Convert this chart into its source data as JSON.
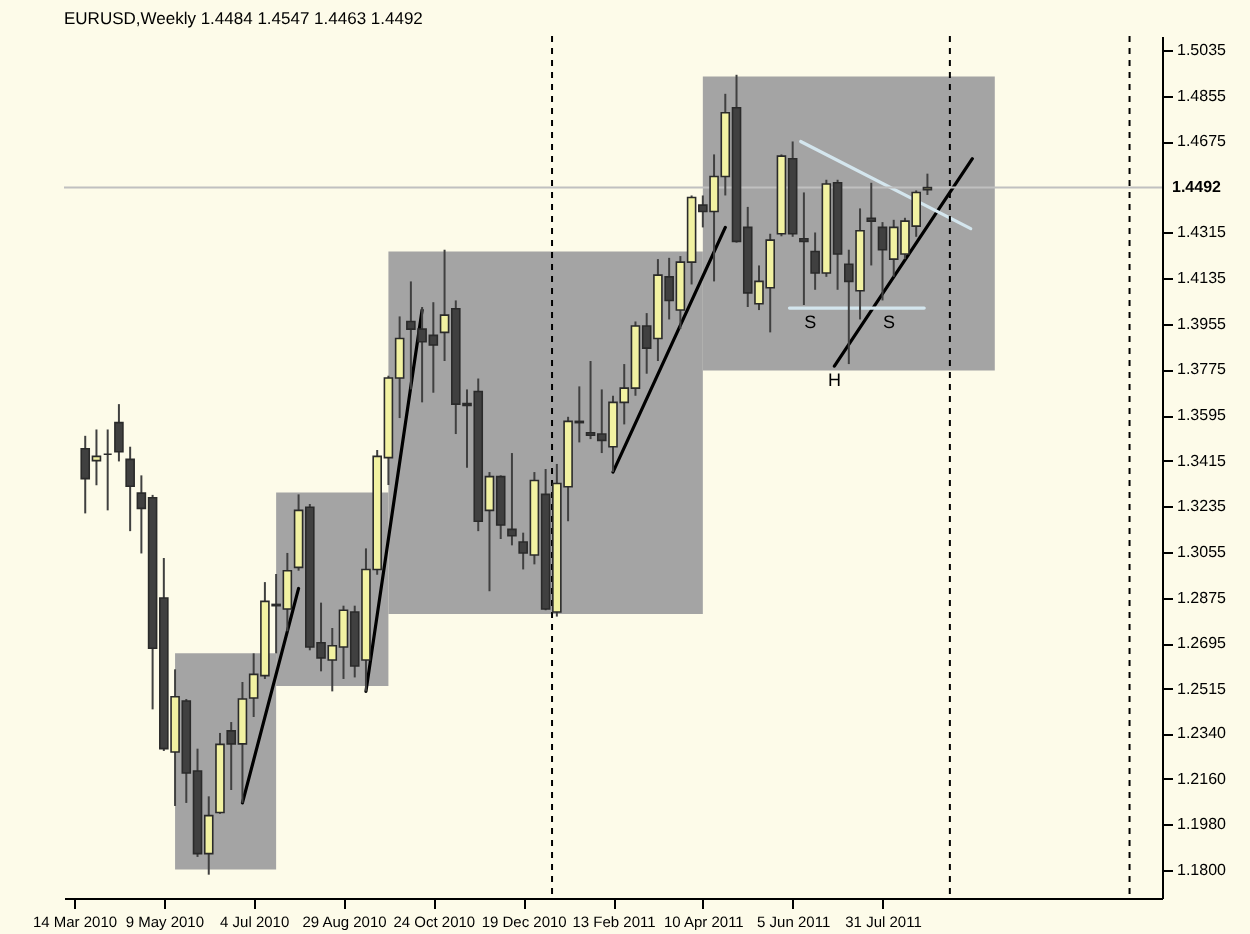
{
  "chart_data": {
    "type": "candlestick",
    "title": "EURUSD,Weekly 1.4484 1.4547 1.4463 1.4492",
    "x": [
      "2010-03-21",
      "2010-03-28",
      "2010-04-04",
      "2010-04-11",
      "2010-04-18",
      "2010-04-25",
      "2010-05-02",
      "2010-05-09",
      "2010-05-16",
      "2010-05-23",
      "2010-05-30",
      "2010-06-06",
      "2010-06-13",
      "2010-06-20",
      "2010-06-27",
      "2010-07-04",
      "2010-07-11",
      "2010-07-18",
      "2010-07-25",
      "2010-08-01",
      "2010-08-08",
      "2010-08-15",
      "2010-08-22",
      "2010-08-29",
      "2010-09-05",
      "2010-09-12",
      "2010-09-19",
      "2010-09-26",
      "2010-10-03",
      "2010-10-10",
      "2010-10-17",
      "2010-10-24",
      "2010-10-31",
      "2010-11-07",
      "2010-11-14",
      "2010-11-21",
      "2010-11-28",
      "2010-12-05",
      "2010-12-12",
      "2010-12-19",
      "2010-12-26",
      "2011-01-02",
      "2011-01-09",
      "2011-01-16",
      "2011-01-23",
      "2011-01-30",
      "2011-02-06",
      "2011-02-13",
      "2011-02-20",
      "2011-02-27",
      "2011-03-06",
      "2011-03-13",
      "2011-03-20",
      "2011-03-27",
      "2011-04-03",
      "2011-04-10",
      "2011-04-17",
      "2011-04-24",
      "2011-05-01",
      "2011-05-08",
      "2011-05-15",
      "2011-05-22",
      "2011-05-29",
      "2011-06-05",
      "2011-06-12",
      "2011-06-19",
      "2011-06-26",
      "2011-07-03",
      "2011-07-10",
      "2011-07-17",
      "2011-07-24",
      "2011-07-31",
      "2011-08-07",
      "2011-08-14",
      "2011-08-21",
      "2011-08-28"
    ],
    "ohlc": [
      [
        1.3462,
        1.3513,
        1.3207,
        1.3344
      ],
      [
        1.3415,
        1.3538,
        1.3318,
        1.3432
      ],
      [
        1.344,
        1.3538,
        1.3219,
        1.344
      ],
      [
        1.3565,
        1.3638,
        1.3412,
        1.345
      ],
      [
        1.342,
        1.347,
        1.3137,
        1.3314
      ],
      [
        1.3287,
        1.3357,
        1.3049,
        1.3227
      ],
      [
        1.3269,
        1.328,
        1.2434,
        1.2675
      ],
      [
        1.2873,
        1.3031,
        1.227,
        1.2279
      ],
      [
        1.2266,
        1.2592,
        1.2053,
        1.2484
      ],
      [
        1.2467,
        1.2475,
        1.2065,
        1.2183
      ],
      [
        1.2191,
        1.2279,
        1.1852,
        1.1865
      ],
      [
        1.1865,
        1.2091,
        1.1782,
        1.2015
      ],
      [
        1.2027,
        1.2341,
        1.2022,
        1.2296
      ],
      [
        1.2349,
        1.2384,
        1.2116,
        1.2298
      ],
      [
        1.2298,
        1.2542,
        1.2065,
        1.2475
      ],
      [
        1.2479,
        1.2655,
        1.2404,
        1.2572
      ],
      [
        1.2567,
        1.2936,
        1.2554,
        1.286
      ],
      [
        1.2848,
        1.2968,
        1.2655,
        1.2843
      ],
      [
        1.283,
        1.3051,
        1.2742,
        1.2981
      ],
      [
        1.2994,
        1.3282,
        1.2981,
        1.3219
      ],
      [
        1.3231,
        1.3244,
        1.2667,
        1.268
      ],
      [
        1.2697,
        1.2855,
        1.2584,
        1.2637
      ],
      [
        1.2629,
        1.2755,
        1.2505,
        1.2685
      ],
      [
        1.268,
        1.2843,
        1.2554,
        1.2825
      ],
      [
        1.2818,
        1.2843,
        1.256,
        1.2605
      ],
      [
        1.2629,
        1.3069,
        1.2505,
        1.2986
      ],
      [
        1.2986,
        1.3457,
        1.2965,
        1.3432
      ],
      [
        1.3427,
        1.375,
        1.3319,
        1.3741
      ],
      [
        1.3741,
        1.3984,
        1.3583,
        1.3897
      ],
      [
        1.3964,
        1.4122,
        1.3696,
        1.3934
      ],
      [
        1.3934,
        1.4021,
        1.3645,
        1.3884
      ],
      [
        1.3909,
        1.404,
        1.3683,
        1.3871
      ],
      [
        1.3921,
        1.4247,
        1.3808,
        1.3989
      ],
      [
        1.4014,
        1.4047,
        1.352,
        1.3638
      ],
      [
        1.364,
        1.3696,
        1.3387,
        1.3633
      ],
      [
        1.3688,
        1.3739,
        1.3137,
        1.3176
      ],
      [
        1.3219,
        1.337,
        1.29,
        1.3352
      ],
      [
        1.3352,
        1.3357,
        1.3106,
        1.3161
      ],
      [
        1.3144,
        1.3445,
        1.3081,
        1.3119
      ],
      [
        1.3094,
        1.3131,
        1.2986,
        1.3051
      ],
      [
        1.3043,
        1.337,
        1.3006,
        1.3337
      ],
      [
        1.3282,
        1.3382,
        1.2825,
        1.283
      ],
      [
        1.2818,
        1.3402,
        1.28,
        1.3325
      ],
      [
        1.3312,
        1.3588,
        1.3176,
        1.357
      ],
      [
        1.357,
        1.3708,
        1.3487,
        1.3565
      ],
      [
        1.3525,
        1.3808,
        1.35,
        1.3515
      ],
      [
        1.352,
        1.3696,
        1.3445,
        1.3495
      ],
      [
        1.347,
        1.3671,
        1.337,
        1.3645
      ],
      [
        1.3645,
        1.3796,
        1.3558,
        1.3701
      ],
      [
        1.3701,
        1.3964,
        1.3671,
        1.3946
      ],
      [
        1.3946,
        1.3997,
        1.3758,
        1.3859
      ],
      [
        1.3897,
        1.421,
        1.3808,
        1.4147
      ],
      [
        1.414,
        1.4215,
        1.3972,
        1.4047
      ],
      [
        1.4009,
        1.4222,
        1.3934,
        1.4198
      ],
      [
        1.4198,
        1.4461,
        1.411,
        1.4453
      ],
      [
        1.4423,
        1.4461,
        1.4335,
        1.4398
      ],
      [
        1.4398,
        1.4623,
        1.4122,
        1.4536
      ],
      [
        1.4536,
        1.4862,
        1.4461,
        1.4787
      ],
      [
        1.4807,
        1.4937,
        1.4275,
        1.428
      ],
      [
        1.4335,
        1.4416,
        1.4021,
        1.4077
      ],
      [
        1.4034,
        1.4185,
        1.4009,
        1.4122
      ],
      [
        1.4097,
        1.431,
        1.3921,
        1.4285
      ],
      [
        1.431,
        1.4623,
        1.43,
        1.4616
      ],
      [
        1.4606,
        1.4674,
        1.4298,
        1.431
      ],
      [
        1.429,
        1.4473,
        1.4029,
        1.428
      ],
      [
        1.424,
        1.4315,
        1.4089,
        1.4155
      ],
      [
        1.4155,
        1.4523,
        1.414,
        1.4506
      ],
      [
        1.4511,
        1.4523,
        1.4089,
        1.423
      ],
      [
        1.419,
        1.4247,
        1.3796,
        1.4122
      ],
      [
        1.4085,
        1.441,
        1.3972,
        1.4322
      ],
      [
        1.4371,
        1.4511,
        1.4185,
        1.436
      ],
      [
        1.4335,
        1.4356,
        1.4047,
        1.4247
      ],
      [
        1.421,
        1.4365,
        1.414,
        1.4335
      ],
      [
        1.423,
        1.4373,
        1.421,
        1.436
      ],
      [
        1.434,
        1.4481,
        1.4298,
        1.4473
      ],
      [
        1.4484,
        1.4547,
        1.4463,
        1.4492
      ]
    ],
    "series": [
      {
        "type": "area",
        "color": "#a4a4a4",
        "x": [
          "2010-05-16",
          "2010-07-18"
        ],
        "values": [
          null,
          null
        ],
        "lower": [
          1.1802,
          1.1802
        ],
        "upper": [
          1.2655,
          1.2655
        ]
      },
      {
        "type": "area",
        "color": "#a4a4a4",
        "x": [
          "2010-07-18",
          "2010-09-26"
        ],
        "values": [
          null,
          null
        ],
        "lower": [
          1.2526,
          1.2526
        ],
        "upper": [
          1.3289,
          1.3289
        ]
      },
      {
        "type": "area",
        "color": "#a4a4a4",
        "x": [
          "2010-09-26",
          "2011-04-10"
        ],
        "values": [
          null,
          null
        ],
        "lower": [
          1.281,
          1.281
        ],
        "upper": [
          1.424,
          1.424
        ]
      },
      {
        "type": "area",
        "color": "#a4a4a4",
        "x": [
          "2011-04-10",
          "2011-10-09"
        ],
        "values": [
          null,
          null
        ],
        "lower": [
          1.3771,
          1.3771
        ],
        "upper": [
          1.493,
          1.493
        ]
      },
      {
        "type": "line",
        "color": "#000000",
        "x": [
          "2010-06-27",
          "2010-08-01"
        ],
        "values": [
          1.2065,
          1.2911
        ]
      },
      {
        "type": "line",
        "color": "#000000",
        "x": [
          "2010-09-12",
          "2010-10-17"
        ],
        "values": [
          1.2505,
          1.4009
        ]
      },
      {
        "type": "line",
        "color": "#000000",
        "x": [
          "2011-02-13",
          "2011-04-24"
        ],
        "values": [
          1.337,
          1.4335
        ]
      },
      {
        "type": "line",
        "color": "#000000",
        "x": [
          "2011-07-01",
          "2011-09-25"
        ],
        "values": [
          1.3788,
          1.4606
        ]
      },
      {
        "type": "line",
        "color": "#d4e6ee",
        "x": [
          "2011-06-10",
          "2011-09-24"
        ],
        "values": [
          1.4674,
          1.433
        ]
      },
      {
        "type": "line",
        "color": "#d4e6ee",
        "x": [
          "2011-06-03",
          "2011-08-26"
        ],
        "values": [
          1.4017,
          1.4017
        ]
      }
    ],
    "ref_lines": [
      {
        "axis": "x",
        "value": "2011-01-06",
        "color": "#000000",
        "line_style": "dashed"
      },
      {
        "axis": "x",
        "value": "2011-09-11",
        "color": "#000000",
        "line_style": "dashed"
      },
      {
        "axis": "x",
        "value": "2012-01-01",
        "color": "#000000",
        "line_style": "dashed"
      },
      {
        "axis": "y",
        "value": 1.4492,
        "label": "1.4492",
        "color": "#c0c0c0",
        "line_style": "solid"
      }
    ],
    "annotations": [
      {
        "text": "S",
        "x": "2011-06-16",
        "y": 1.4017
      },
      {
        "text": "H",
        "x": "2011-07-01",
        "y": 1.3788
      },
      {
        "text": "S",
        "x": "2011-08-04",
        "y": 1.4017
      }
    ],
    "xlim": [
      "2010-03-14",
      "2012-01-15"
    ],
    "xticks": [
      {
        "value": "2010-03-14",
        "label": "14 Mar 2010"
      },
      {
        "value": "2010-05-09",
        "label": "9 May 2010"
      },
      {
        "value": "2010-07-04",
        "label": "4 Jul 2010"
      },
      {
        "value": "2010-08-29",
        "label": "29 Aug 2010"
      },
      {
        "value": "2010-10-24",
        "label": "24 Oct 2010"
      },
      {
        "value": "2010-12-19",
        "label": "19 Dec 2010"
      },
      {
        "value": "2011-02-13",
        "label": "13 Feb 2011"
      },
      {
        "value": "2011-04-10",
        "label": "10 Apr 2011"
      },
      {
        "value": "2011-06-05",
        "label": "5 Jun 2011"
      },
      {
        "value": "2011-07-31",
        "label": "31 Jul 2011"
      }
    ],
    "ylim": [
      1.169,
      1.509
    ],
    "yticks": [
      1.5035,
      1.4855,
      1.4675,
      1.4315,
      1.4135,
      1.3955,
      1.3775,
      1.3595,
      1.3415,
      1.3235,
      1.3055,
      1.2875,
      1.2695,
      1.2515,
      {
        "value": 1.234,
        "label": "1.2340"
      },
      {
        "value": 1.216,
        "label": "1.2160"
      },
      {
        "value": 1.198,
        "label": "1.1980"
      },
      {
        "value": 1.18,
        "label": "1.1800"
      }
    ]
  }
}
